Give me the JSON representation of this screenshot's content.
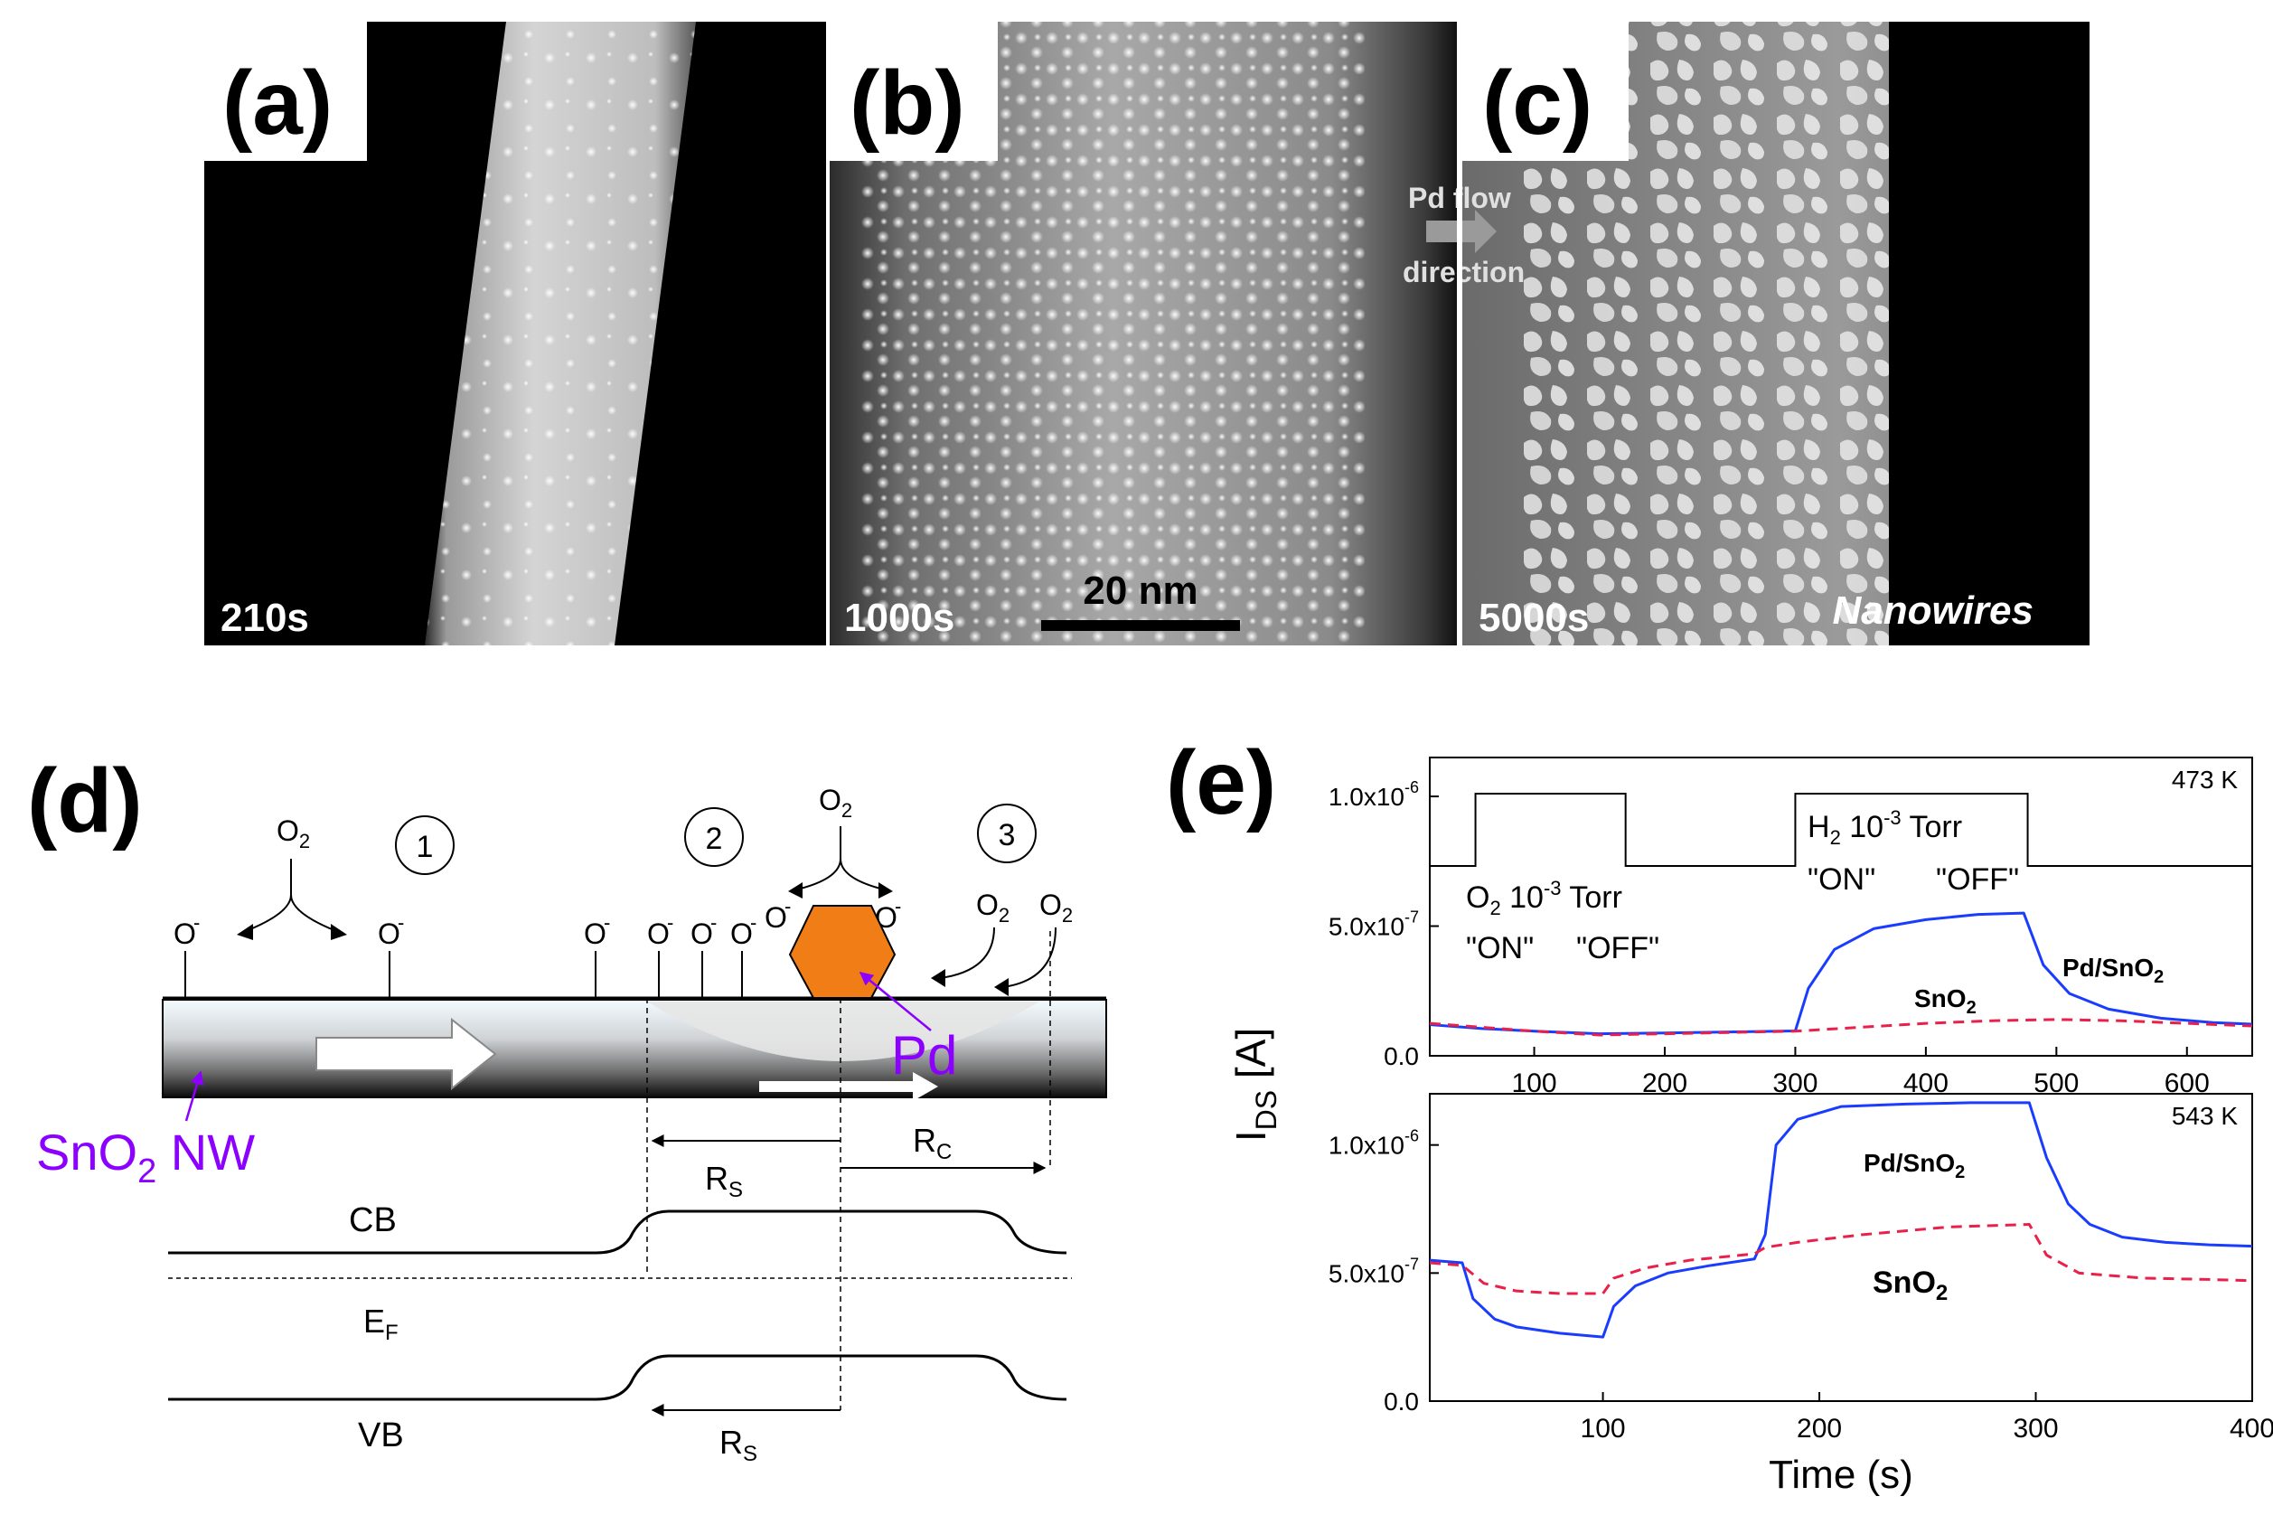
{
  "figure": {
    "panel_a": {
      "letter": "(a)",
      "time": "210s"
    },
    "panel_b": {
      "letter": "(b)",
      "time": "1000s",
      "scale_bar": "20 nm"
    },
    "panel_c": {
      "letter": "(c)",
      "time": "5000s",
      "label": "Nanowires",
      "flow_line1": "Pd flow",
      "flow_line2": "direction"
    },
    "panel_d": {
      "letter": "(d)",
      "circle1": "1",
      "circle2": "2",
      "circle3": "3",
      "o2": "O",
      "o2_sub": "2",
      "o_minus": "O",
      "minus": "-",
      "pd_label": "Pd",
      "nw_label": "SnO",
      "nw_sub": "2",
      "nw_suffix": " NW",
      "rs": "R",
      "rs_sub": "S",
      "rc": "R",
      "rc_sub": "C",
      "cb": "CB",
      "ef": "E",
      "ef_sub": "F",
      "vb": "VB"
    },
    "panel_e": {
      "letter": "(e)"
    }
  },
  "chart_data": [
    {
      "type": "line",
      "panel": "top",
      "temperature": "473 K",
      "xlim": [
        20,
        650
      ],
      "ylim": [
        0,
        1.15e-06
      ],
      "xticks": [
        "100",
        "200",
        "300",
        "400",
        "500",
        "600"
      ],
      "yticks": [
        "0.0",
        "5.0x10",
        "1.0x10"
      ],
      "ytick_exp": "-7",
      "ytick_exp2": "-6",
      "annot_o2": "O",
      "annot_o2_sub": "2",
      "annot_torr": " 10",
      "annot_exp": "-3",
      "annot_torr_unit": " Torr",
      "annot_on": "\"ON\"",
      "annot_off": "\"OFF\"",
      "annot_h2": "H",
      "annot_h2_sub": "2",
      "label_sno2": "SnO",
      "label_sno2_sub": "2",
      "label_pd": "Pd/SnO",
      "label_pd_sub": "2",
      "series": [
        {
          "name": "Pd/SnO2",
          "color": "#1a3cff",
          "x": [
            20,
            60,
            100,
            150,
            200,
            250,
            300,
            310,
            330,
            360,
            400,
            440,
            475,
            490,
            510,
            540,
            580,
            620,
            650
          ],
          "y": [
            1.2e-07,
            1.05e-07,
            9.5e-08,
            8.5e-08,
            8.8e-08,
            9.2e-08,
            9.6e-08,
            2.6e-07,
            4.1e-07,
            4.9e-07,
            5.25e-07,
            5.45e-07,
            5.5e-07,
            3.5e-07,
            2.4e-07,
            1.8e-07,
            1.45e-07,
            1.28e-07,
            1.22e-07
          ]
        },
        {
          "name": "SnO2",
          "color": "#e8204a",
          "dashed": true,
          "x": [
            20,
            60,
            100,
            150,
            200,
            250,
            300,
            350,
            400,
            450,
            500,
            550,
            600,
            650
          ],
          "y": [
            1.25e-07,
            1.1e-07,
            9.5e-08,
            8e-08,
            8.5e-08,
            9e-08,
            9.5e-08,
            1.1e-07,
            1.25e-07,
            1.35e-07,
            1.4e-07,
            1.35e-07,
            1.25e-07,
            1.15e-07
          ]
        }
      ],
      "gas_step": {
        "x": [
          20,
          55,
          55,
          170,
          170,
          300,
          300,
          478,
          478,
          650
        ],
        "level": [
          "low",
          "low",
          "high",
          "high",
          "low",
          "low",
          "high",
          "high",
          "low",
          "low"
        ]
      }
    },
    {
      "type": "line",
      "panel": "bottom",
      "temperature": "543 K",
      "xlim": [
        20,
        400
      ],
      "ylim": [
        0,
        1.2e-06
      ],
      "xticks": [
        "100",
        "200",
        "300",
        "400"
      ],
      "yticks": [
        "0.0",
        "5.0x10",
        "1.0x10"
      ],
      "ytick_exp": "-7",
      "ytick_exp2": "-6",
      "xlabel": "Time (s)",
      "ylabel": "I",
      "ylabel_sub": "DS",
      "ylabel_unit": " [A]",
      "label_sno2": "SnO",
      "label_sno2_sub": "2",
      "label_pd": "Pd/SnO",
      "label_pd_sub": "2",
      "series": [
        {
          "name": "Pd/SnO2",
          "color": "#1a3cff",
          "x": [
            20,
            35,
            40,
            50,
            60,
            80,
            100,
            105,
            115,
            130,
            150,
            170,
            175,
            180,
            190,
            210,
            240,
            270,
            297,
            305,
            315,
            325,
            340,
            360,
            380,
            400
          ],
          "y": [
            5.5e-07,
            5.4e-07,
            4e-07,
            3.2e-07,
            2.9e-07,
            2.65e-07,
            2.5e-07,
            3.7e-07,
            4.5e-07,
            5e-07,
            5.3e-07,
            5.55e-07,
            6.5e-07,
            1e-06,
            1.1e-06,
            1.15e-06,
            1.16e-06,
            1.165e-06,
            1.165e-06,
            9.5e-07,
            7.7e-07,
            6.9e-07,
            6.4e-07,
            6.2e-07,
            6.1e-07,
            6.05e-07
          ]
        },
        {
          "name": "SnO2",
          "color": "#e8204a",
          "dashed": true,
          "x": [
            20,
            35,
            45,
            60,
            80,
            100,
            105,
            120,
            140,
            170,
            175,
            190,
            220,
            260,
            297,
            305,
            320,
            350,
            380,
            400
          ],
          "y": [
            5.4e-07,
            5.3e-07,
            4.6e-07,
            4.3e-07,
            4.2e-07,
            4.2e-07,
            4.8e-07,
            5.2e-07,
            5.5e-07,
            5.75e-07,
            6e-07,
            6.2e-07,
            6.5e-07,
            6.8e-07,
            6.9e-07,
            5.7e-07,
            5e-07,
            4.8e-07,
            4.75e-07,
            4.7e-07
          ]
        }
      ]
    }
  ]
}
